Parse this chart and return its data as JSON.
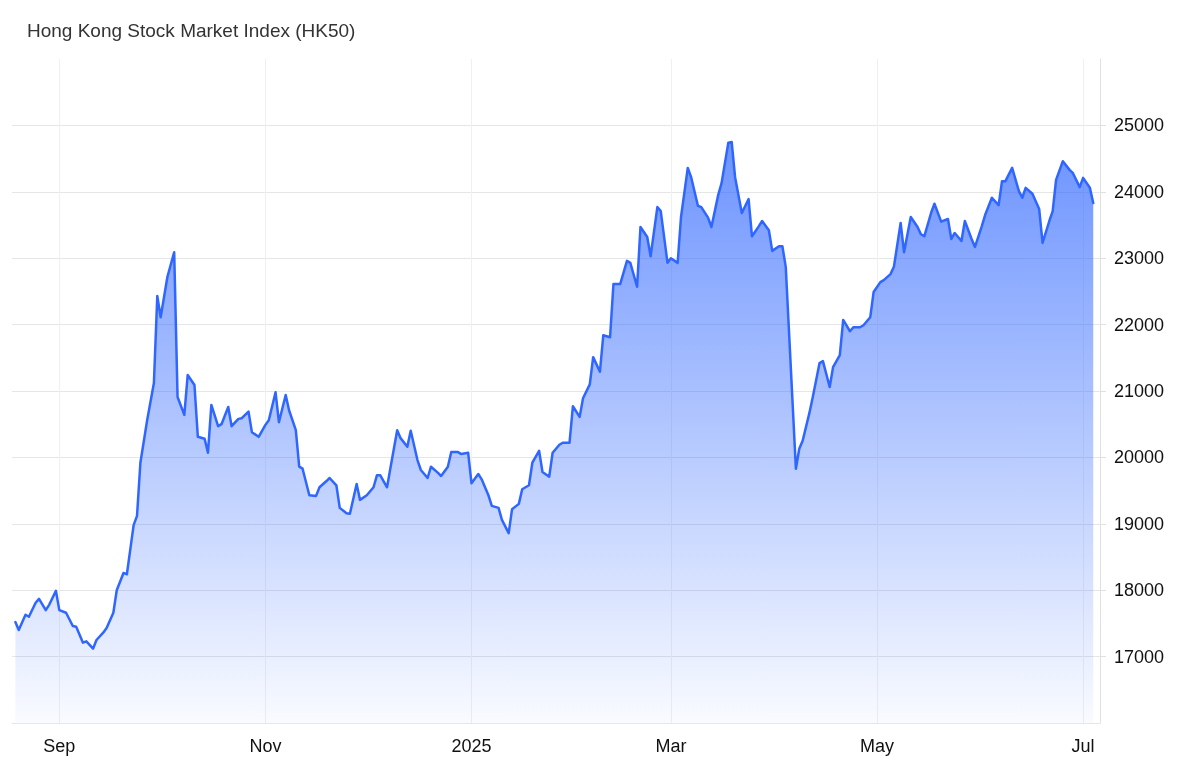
{
  "chart_data": {
    "type": "area",
    "title": "Hong Kong Stock Market Index (HK50)",
    "x": [
      "2024-08-19",
      "2024-08-20",
      "2024-08-22",
      "2024-08-23",
      "2024-08-25",
      "2024-08-26",
      "2024-08-28",
      "2024-08-29",
      "2024-08-31",
      "2024-09-01",
      "2024-09-03",
      "2024-09-05",
      "2024-09-06",
      "2024-09-08",
      "2024-09-09",
      "2024-09-11",
      "2024-09-12",
      "2024-09-14",
      "2024-09-15",
      "2024-09-17",
      "2024-09-18",
      "2024-09-20",
      "2024-09-21",
      "2024-09-23",
      "2024-09-24",
      "2024-09-25",
      "2024-09-27",
      "2024-09-29",
      "2024-09-30",
      "2024-10-01",
      "2024-10-03",
      "2024-10-05",
      "2024-10-06",
      "2024-10-08",
      "2024-10-09",
      "2024-10-11",
      "2024-10-12",
      "2024-10-14",
      "2024-10-15",
      "2024-10-16",
      "2024-10-18",
      "2024-10-19",
      "2024-10-21",
      "2024-10-22",
      "2024-10-24",
      "2024-10-25",
      "2024-10-27",
      "2024-10-28",
      "2024-10-30",
      "2024-11-01",
      "2024-11-02",
      "2024-11-04",
      "2024-11-05",
      "2024-11-07",
      "2024-11-08",
      "2024-11-10",
      "2024-11-11",
      "2024-11-12",
      "2024-11-14",
      "2024-11-16",
      "2024-11-17",
      "2024-11-19",
      "2024-11-20",
      "2024-11-22",
      "2024-11-23",
      "2024-11-25",
      "2024-11-26",
      "2024-11-28",
      "2024-11-29",
      "2024-12-01",
      "2024-12-03",
      "2024-12-04",
      "2024-12-05",
      "2024-12-07",
      "2024-12-08",
      "2024-12-10",
      "2024-12-11",
      "2024-12-13",
      "2024-12-14",
      "2024-12-16",
      "2024-12-17",
      "2024-12-19",
      "2024-12-20",
      "2024-12-22",
      "2024-12-23",
      "2024-12-25",
      "2024-12-26",
      "2024-12-28",
      "2024-12-29",
      "2024-12-31",
      "2025-01-01",
      "2025-01-03",
      "2025-01-04",
      "2025-01-06",
      "2025-01-07",
      "2025-01-09",
      "2025-01-10",
      "2025-01-12",
      "2025-01-13",
      "2025-01-15",
      "2025-01-16",
      "2025-01-18",
      "2025-01-19",
      "2025-01-21",
      "2025-01-22",
      "2025-01-24",
      "2025-01-25",
      "2025-01-27",
      "2025-01-28",
      "2025-01-30",
      "2025-01-31",
      "2025-02-02",
      "2025-02-03",
      "2025-02-05",
      "2025-02-06",
      "2025-02-08",
      "2025-02-09",
      "2025-02-11",
      "2025-02-12",
      "2025-02-14",
      "2025-02-16",
      "2025-02-17",
      "2025-02-19",
      "2025-02-20",
      "2025-02-22",
      "2025-02-23",
      "2025-02-25",
      "2025-02-26",
      "2025-02-28",
      "2025-03-01",
      "2025-03-03",
      "2025-03-04",
      "2025-03-06",
      "2025-03-07",
      "2025-03-09",
      "2025-03-10",
      "2025-03-12",
      "2025-03-13",
      "2025-03-15",
      "2025-03-16",
      "2025-03-18",
      "2025-03-19",
      "2025-03-20",
      "2025-03-22",
      "2025-03-24",
      "2025-03-25",
      "2025-03-27",
      "2025-03-28",
      "2025-03-30",
      "2025-03-31",
      "2025-04-02",
      "2025-04-03",
      "2025-04-04",
      "2025-04-07",
      "2025-04-08",
      "2025-04-09",
      "2025-04-11",
      "2025-04-12",
      "2025-04-14",
      "2025-04-15",
      "2025-04-17",
      "2025-04-18",
      "2025-04-20",
      "2025-04-21",
      "2025-04-23",
      "2025-04-24",
      "2025-04-26",
      "2025-04-27",
      "2025-04-29",
      "2025-04-30",
      "2025-05-02",
      "2025-05-03",
      "2025-05-05",
      "2025-05-06",
      "2025-05-08",
      "2025-05-09",
      "2025-05-11",
      "2025-05-13",
      "2025-05-14",
      "2025-05-15",
      "2025-05-17",
      "2025-05-18",
      "2025-05-20",
      "2025-05-22",
      "2025-05-23",
      "2025-05-24",
      "2025-05-26",
      "2025-05-27",
      "2025-05-29",
      "2025-05-30",
      "2025-06-01",
      "2025-06-02",
      "2025-06-04",
      "2025-06-06",
      "2025-06-07",
      "2025-06-08",
      "2025-06-10",
      "2025-06-12",
      "2025-06-13",
      "2025-06-14",
      "2025-06-16",
      "2025-06-18",
      "2025-06-19",
      "2025-06-21",
      "2025-06-22",
      "2025-06-23",
      "2025-06-25",
      "2025-06-27",
      "2025-06-28",
      "2025-06-30",
      "2025-07-01",
      "2025-07-03",
      "2025-07-04"
    ],
    "series": [
      {
        "color": "#2f66ff",
        "values": [
          17520,
          17400,
          17630,
          17600,
          17810,
          17870,
          17700,
          17780,
          17990,
          17700,
          17660,
          17460,
          17450,
          17210,
          17230,
          17120,
          17250,
          17360,
          17430,
          17660,
          18000,
          18260,
          18240,
          18980,
          19120,
          19920,
          20560,
          21120,
          22430,
          22110,
          22720,
          23090,
          20910,
          20640,
          21240,
          21090,
          20310,
          20280,
          20070,
          20790,
          20470,
          20500,
          20760,
          20470,
          20580,
          20590,
          20690,
          20380,
          20310,
          20490,
          20560,
          20980,
          20530,
          20940,
          20710,
          20410,
          19860,
          19830,
          19430,
          19420,
          19550,
          19640,
          19690,
          19580,
          19240,
          19160,
          19150,
          19600,
          19360,
          19430,
          19550,
          19730,
          19730,
          19550,
          19840,
          20410,
          20290,
          20160,
          20400,
          19960,
          19810,
          19690,
          19860,
          19770,
          19720,
          19860,
          20080,
          20080,
          20050,
          20070,
          19610,
          19750,
          19670,
          19430,
          19270,
          19240,
          19060,
          18860,
          19220,
          19300,
          19520,
          19580,
          19920,
          20100,
          19780,
          19710,
          20070,
          20190,
          20220,
          20220,
          20770,
          20610,
          20890,
          21100,
          21510,
          21290,
          21840,
          21810,
          22610,
          22610,
          22960,
          22930,
          22570,
          23470,
          23320,
          23030,
          23770,
          23710,
          22930,
          23000,
          22930,
          23620,
          24360,
          24220,
          23790,
          23770,
          23610,
          23470,
          23950,
          24130,
          24740,
          24750,
          24220,
          23680,
          23890,
          23330,
          23480,
          23560,
          23420,
          23110,
          23180,
          23180,
          22870,
          19830,
          20130,
          20250,
          20670,
          20910,
          21420,
          21450,
          21060,
          21360,
          21540,
          22070,
          21900,
          21960,
          21960,
          21990,
          22110,
          22490,
          22640,
          22670,
          22760,
          22870,
          23530,
          23090,
          23620,
          23470,
          23360,
          23330,
          23680,
          23820,
          23550,
          23590,
          23290,
          23380,
          23260,
          23560,
          23290,
          23170,
          23480,
          23650,
          23910,
          23800,
          24160,
          24160,
          24360,
          24010,
          23910,
          24060,
          23970,
          23740,
          23230,
          23560,
          23710,
          24180,
          24460,
          24330,
          24280,
          24070,
          24210,
          24060,
          23830
        ]
      }
    ],
    "xlim": [
      "2024-08-18",
      "2025-07-06"
    ],
    "xticks": [
      {
        "value": "2024-09-01",
        "label": "Sep"
      },
      {
        "value": "2024-11-01",
        "label": "Nov"
      },
      {
        "value": "2025-01-01",
        "label": "2025"
      },
      {
        "value": "2025-03-01",
        "label": "Mar"
      },
      {
        "value": "2025-05-01",
        "label": "May"
      },
      {
        "value": "2025-07-01",
        "label": "Jul"
      }
    ],
    "ylim": [
      16000,
      26000
    ],
    "yticks": [
      17000,
      18000,
      19000,
      20000,
      21000,
      22000,
      23000,
      24000,
      25000
    ],
    "grid": true,
    "marker": "none",
    "line_style": "solid"
  }
}
